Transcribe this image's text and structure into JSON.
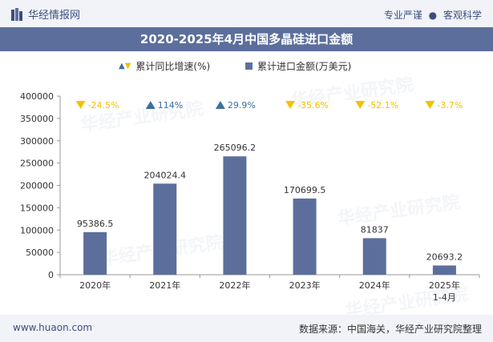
{
  "header": {
    "brand": "华经情报网",
    "tagline_left": "专业严谨",
    "tagline_right": "客观科学"
  },
  "title": "2020-2025年4月中国多晶硅进口金额",
  "legend": {
    "growth_label": "累计同比增速(%)",
    "amount_label": "累计进口金额(万美元)"
  },
  "chart_data": {
    "type": "bar",
    "categories": [
      "2020年",
      "2021年",
      "2022年",
      "2023年",
      "2024年",
      "2025年\n1-4月"
    ],
    "series": [
      {
        "name": "累计进口金额(万美元)",
        "values": [
          95386.5,
          204024.4,
          265096.2,
          170699.5,
          81837,
          20693.2
        ],
        "labels": [
          "95386.5",
          "204024.4",
          "265096.2",
          "170699.5",
          "81837",
          "20693.2"
        ]
      },
      {
        "name": "累计同比增速(%)",
        "values": [
          -24.5,
          114,
          29.9,
          -35.6,
          -52.1,
          -3.7
        ],
        "labels": [
          "-24.5%",
          "114%",
          "29.9%",
          "-35.6%",
          "-52.1%",
          "-3.7%"
        ]
      }
    ],
    "ylim": [
      0,
      400000
    ],
    "yticks": [
      "400000",
      "350000",
      "300000",
      "250000",
      "200000",
      "150000",
      "100000",
      "50000",
      "0"
    ],
    "grid": false,
    "legend_position": "top-center",
    "colors": {
      "bar": "#5c6f9c",
      "up": "#3c6fa0",
      "down": "#f2c200"
    }
  },
  "footer": {
    "website": "www.huaon.com",
    "source": "数据来源：中国海关，华经产业研究院整理"
  },
  "watermark": "华经产业研究院"
}
